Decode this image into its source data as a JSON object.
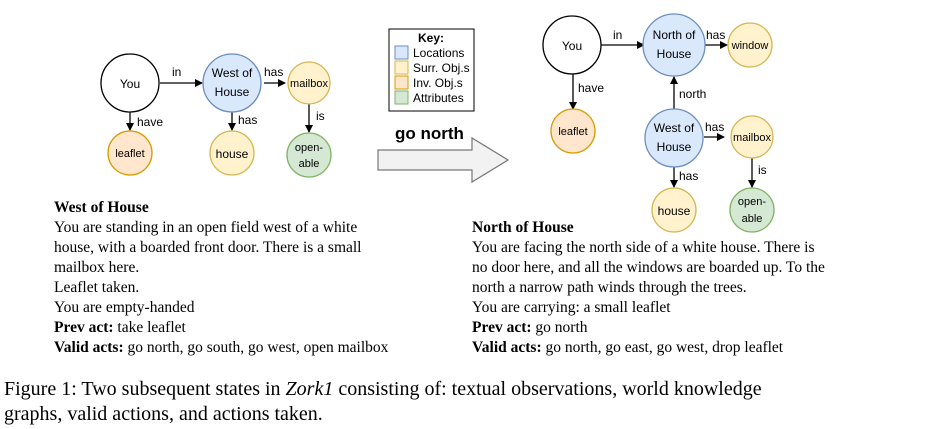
{
  "left_graph": {
    "nodes": {
      "you": "You",
      "west_of_house": [
        "West of",
        "House"
      ],
      "mailbox": "mailbox",
      "leaflet": "leaflet",
      "house": "house",
      "openable": [
        "open-",
        "able"
      ]
    },
    "edges": {
      "in": "in",
      "has_mailbox": "has",
      "have": "have",
      "has_house": "has",
      "is": "is"
    }
  },
  "key": {
    "title": "Key:",
    "items": [
      {
        "label": "Locations",
        "color": "#dae8fc",
        "stroke": "#6c8ebf"
      },
      {
        "label": "Surr. Obj.s",
        "color": "#fff2cc",
        "stroke": "#d6b656"
      },
      {
        "label": "Inv. Obj.s",
        "color": "#ffe6cc",
        "stroke": "#d79b00"
      },
      {
        "label": "Attributes",
        "color": "#d5e8d4",
        "stroke": "#82b366"
      }
    ]
  },
  "action": "go north",
  "right_graph": {
    "nodes": {
      "you": "You",
      "north_of_house": [
        "North of",
        "House"
      ],
      "window": "window",
      "leaflet": "leaflet",
      "west_of_house": [
        "West of",
        "House"
      ],
      "mailbox": "mailbox",
      "house": "house",
      "openable": [
        "open-",
        "able"
      ]
    },
    "edges": {
      "in": "in",
      "has_window": "has",
      "have": "have",
      "north": "north",
      "has_mailbox": "has",
      "has_house": "has",
      "is": "is"
    }
  },
  "left_obs": {
    "title": "West of House",
    "lines": [
      "You are standing in an open field west of a white",
      "house, with a boarded front door. There is a small",
      "mailbox here.",
      "Leaflet taken.",
      "You are empty-handed"
    ],
    "prev_label": "Prev act:",
    "prev_value": " take leaflet",
    "valid_label": "Valid acts:",
    "valid_value": " go north, go south, go west, open mailbox"
  },
  "right_obs": {
    "title": "North of House",
    "lines": [
      "You are facing the north side of a white house. There is",
      "no door here, and all the windows are boarded up. To the",
      "north a narrow path winds through the trees.",
      "You are carrying: a small leaflet"
    ],
    "prev_label": "Prev act:",
    "prev_value": " go north",
    "valid_label": "Valid acts:",
    "valid_value": " go north, go east, go west, drop leaflet"
  },
  "caption": {
    "prefix": "Figure 1: Two subsequent states in ",
    "italic": "Zork1",
    "line1_rest": " consisting of: textual observations, world knowledge",
    "line2": "graphs, valid actions, and actions taken."
  }
}
